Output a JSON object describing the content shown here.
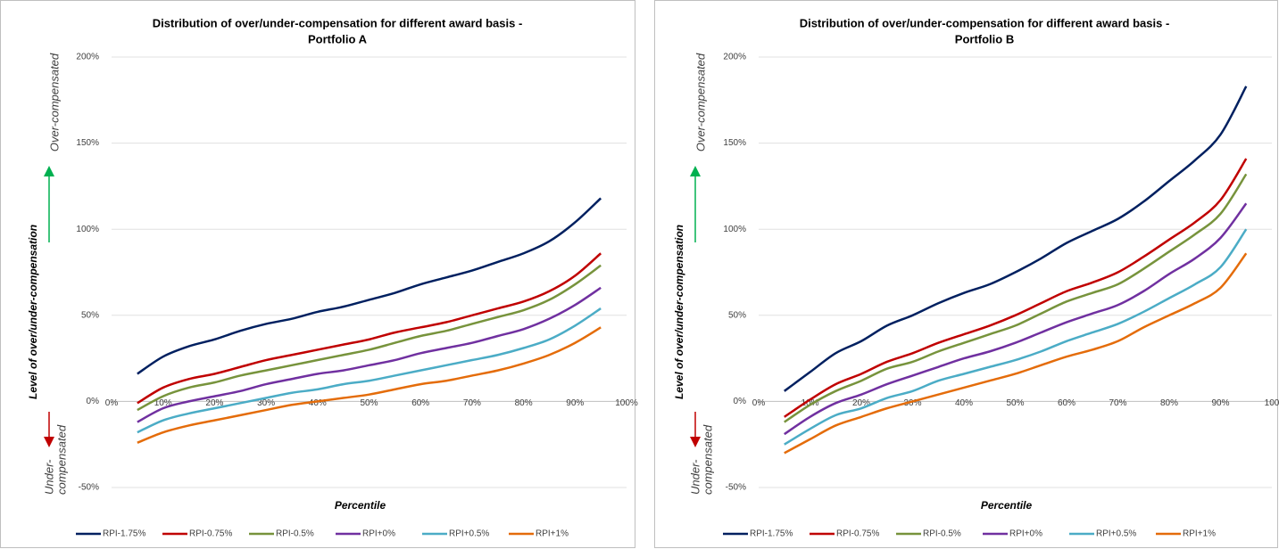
{
  "chart_data": [
    {
      "type": "line",
      "title": [
        "Distribution of over/under-compensation for different award basis -",
        "Portfolio A"
      ],
      "y_label": "Level of over/under-compensation",
      "x_label": "Percentile",
      "annotations": {
        "over": {
          "text": "Over-compensated",
          "color": "#00b050"
        },
        "under": {
          "lines": [
            "Under-",
            "compensated"
          ],
          "color": "#c00000"
        }
      },
      "x": [
        5,
        10,
        15,
        20,
        25,
        30,
        35,
        40,
        45,
        50,
        55,
        60,
        65,
        70,
        75,
        80,
        85,
        90,
        95
      ],
      "xlim": [
        0,
        100
      ],
      "xticks": [
        {
          "value": 0,
          "label": "0%"
        },
        {
          "value": 10,
          "label": "10%"
        },
        {
          "value": 20,
          "label": "20%"
        },
        {
          "value": 30,
          "label": "30%"
        },
        {
          "value": 40,
          "label": "40%"
        },
        {
          "value": 50,
          "label": "50%"
        },
        {
          "value": 60,
          "label": "60%"
        },
        {
          "value": 70,
          "label": "70%"
        },
        {
          "value": 80,
          "label": "80%"
        },
        {
          "value": 90,
          "label": "90%"
        },
        {
          "value": 100,
          "label": "100%"
        }
      ],
      "ylim": [
        -50,
        200
      ],
      "yticks": [
        {
          "value": -50,
          "label": "-50%"
        },
        {
          "value": 0,
          "label": "0%"
        },
        {
          "value": 50,
          "label": "50%"
        },
        {
          "value": 100,
          "label": "100%"
        },
        {
          "value": 150,
          "label": "150%"
        },
        {
          "value": 200,
          "label": "200%"
        }
      ],
      "grid": true,
      "legend": "bottom",
      "series": [
        {
          "name": "RPI-1.75%",
          "color": "#002060",
          "values": [
            16,
            26,
            32,
            36,
            41,
            45,
            48,
            52,
            55,
            59,
            63,
            68,
            72,
            76,
            81,
            86,
            93,
            104,
            118
          ]
        },
        {
          "name": "RPI-0.75%",
          "color": "#c00000",
          "values": [
            -1,
            8,
            13,
            16,
            20,
            24,
            27,
            30,
            33,
            36,
            40,
            43,
            46,
            50,
            54,
            58,
            64,
            73,
            86
          ]
        },
        {
          "name": "RPI-0.5%",
          "color": "#77933c",
          "values": [
            -5,
            3,
            8,
            11,
            15,
            18,
            21,
            24,
            27,
            30,
            34,
            38,
            41,
            45,
            49,
            53,
            59,
            68,
            79
          ]
        },
        {
          "name": "RPI+0%",
          "color": "#7030a0",
          "values": [
            -12,
            -4,
            0,
            3,
            6,
            10,
            13,
            16,
            18,
            21,
            24,
            28,
            31,
            34,
            38,
            42,
            48,
            56,
            66
          ]
        },
        {
          "name": "RPI+0.5%",
          "color": "#4bacc6",
          "values": [
            -18,
            -11,
            -7,
            -4,
            -1,
            2,
            5,
            7,
            10,
            12,
            15,
            18,
            21,
            24,
            27,
            31,
            36,
            44,
            54
          ]
        },
        {
          "name": "RPI+1%",
          "color": "#e46c0a",
          "values": [
            -24,
            -18,
            -14,
            -11,
            -8,
            -5,
            -2,
            0,
            2,
            4,
            7,
            10,
            12,
            15,
            18,
            22,
            27,
            34,
            43
          ]
        }
      ]
    },
    {
      "type": "line",
      "title": [
        "Distribution of over/under-compensation for different award basis -",
        "Portfolio B"
      ],
      "y_label": "Level of over/under-compensation",
      "x_label": "Percentile",
      "annotations": {
        "over": {
          "text": "Over-compensated",
          "color": "#00b050"
        },
        "under": {
          "lines": [
            "Under-",
            "compensated"
          ],
          "color": "#c00000"
        }
      },
      "x": [
        5,
        10,
        15,
        20,
        25,
        30,
        35,
        40,
        45,
        50,
        55,
        60,
        65,
        70,
        75,
        80,
        85,
        90,
        95
      ],
      "xlim": [
        0,
        100
      ],
      "xticks": [
        {
          "value": 0,
          "label": "0%"
        },
        {
          "value": 10,
          "label": "10%"
        },
        {
          "value": 20,
          "label": "20%"
        },
        {
          "value": 30,
          "label": "30%"
        },
        {
          "value": 40,
          "label": "40%"
        },
        {
          "value": 50,
          "label": "50%"
        },
        {
          "value": 60,
          "label": "60%"
        },
        {
          "value": 70,
          "label": "70%"
        },
        {
          "value": 80,
          "label": "80%"
        },
        {
          "value": 90,
          "label": "90%"
        },
        {
          "value": 100,
          "label": "100"
        }
      ],
      "ylim": [
        -50,
        200
      ],
      "yticks": [
        {
          "value": -50,
          "label": "-50%"
        },
        {
          "value": 0,
          "label": "0%"
        },
        {
          "value": 50,
          "label": "50%"
        },
        {
          "value": 100,
          "label": "100%"
        },
        {
          "value": 150,
          "label": "150%"
        },
        {
          "value": 200,
          "label": "200%"
        }
      ],
      "grid": true,
      "legend": "bottom",
      "series": [
        {
          "name": "RPI-1.75%",
          "color": "#002060",
          "values": [
            6,
            17,
            28,
            35,
            44,
            50,
            57,
            63,
            68,
            75,
            83,
            92,
            99,
            106,
            116,
            128,
            140,
            155,
            183
          ]
        },
        {
          "name": "RPI-0.75%",
          "color": "#c00000",
          "values": [
            -9,
            1,
            10,
            16,
            23,
            28,
            34,
            39,
            44,
            50,
            57,
            64,
            69,
            75,
            84,
            94,
            104,
            117,
            141
          ]
        },
        {
          "name": "RPI-0.5%",
          "color": "#77933c",
          "values": [
            -12,
            -2,
            6,
            12,
            19,
            23,
            29,
            34,
            39,
            44,
            51,
            58,
            63,
            68,
            77,
            87,
            97,
            109,
            132
          ]
        },
        {
          "name": "RPI+0%",
          "color": "#7030a0",
          "values": [
            -19,
            -9,
            -1,
            4,
            10,
            15,
            20,
            25,
            29,
            34,
            40,
            46,
            51,
            56,
            64,
            74,
            83,
            95,
            115
          ]
        },
        {
          "name": "RPI+0.5%",
          "color": "#4bacc6",
          "values": [
            -25,
            -16,
            -8,
            -4,
            2,
            6,
            12,
            16,
            20,
            24,
            29,
            35,
            40,
            45,
            52,
            60,
            68,
            78,
            100
          ]
        },
        {
          "name": "RPI+1%",
          "color": "#e46c0a",
          "values": [
            -30,
            -22,
            -14,
            -9,
            -4,
            0,
            4,
            8,
            12,
            16,
            21,
            26,
            30,
            35,
            43,
            50,
            57,
            66,
            86
          ]
        }
      ]
    }
  ]
}
